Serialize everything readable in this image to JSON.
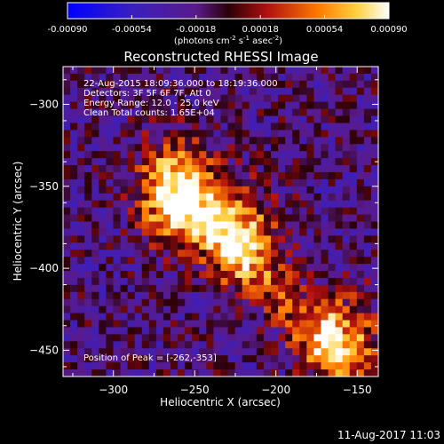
{
  "colorbar": {
    "ticks": [
      "-0.00090",
      "-0.00054",
      "-0.00018",
      "0.00018",
      "0.00054",
      "0.00090"
    ],
    "range": [
      -0.0009,
      0.0009
    ],
    "unit_label": "(photons cm",
    "unit_exp1": "-2",
    "unit_mid": " s",
    "unit_exp2": "-1",
    "unit_mid2": " asec",
    "unit_exp3": "-2",
    "unit_close": ")"
  },
  "annotations": {
    "time": "22-Aug-2015 18:09:36.000 to 18:19:36.000",
    "detectors": "Detectors: 3F 5F 6F 7F, Att 0",
    "energy": "Energy Range: 12.0 - 25.0 keV",
    "clean": "Clean     Total counts: 1.65E+04",
    "peak": "Position of Peak = [-262,-353]"
  },
  "footer": {
    "timestamp": "11-Aug-2017 11:03"
  },
  "colors": {
    "background": "#000000",
    "text": "#ffffff"
  },
  "chart_data": {
    "type": "heatmap",
    "title": "Reconstructed RHESSI Image",
    "xlabel": "Heliocentric X (arcsec)",
    "ylabel": "Heliocentric Y (arcsec)",
    "xlim": [
      -331,
      -137
    ],
    "ylim": [
      -466,
      -277
    ],
    "x_ticks": [
      -300,
      -250,
      -200,
      -150
    ],
    "y_ticks": [
      -300,
      -350,
      -400,
      -450
    ],
    "x_tick_labels": [
      "−300",
      "−250",
      "−200",
      "−150"
    ],
    "y_tick_labels": [
      "−300",
      "−350",
      "−400",
      "−450"
    ],
    "colormap": "blue-purple-red-orange-white (RHESSI)",
    "peak": [
      -262,
      -353
    ],
    "sources": [
      {
        "x": -262,
        "y": -353,
        "strength": 1.0
      },
      {
        "x": -222,
        "y": -380,
        "strength": 0.7
      },
      {
        "x": -160,
        "y": -448,
        "strength": 0.8
      }
    ]
  }
}
